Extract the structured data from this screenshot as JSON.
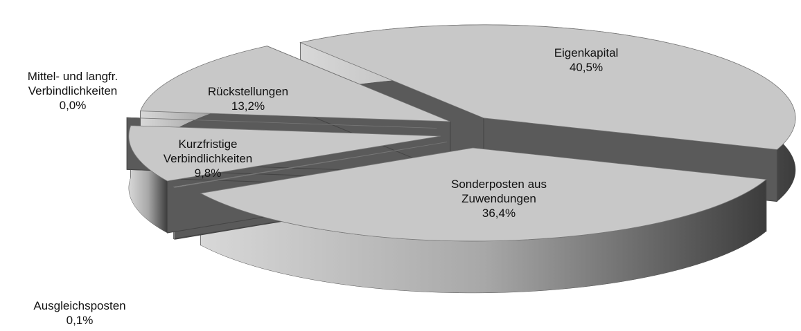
{
  "chart_data": {
    "type": "pie",
    "categories": [
      "Eigenkapital",
      "Sonderposten aus Zuwendungen",
      "Ausgleichsposten",
      "Kurzfristige Verbindlichkeiten",
      "Mittel- und langfr. Verbindlichkeiten",
      "Rückstellungen"
    ],
    "values": [
      40.5,
      36.4,
      0.1,
      9.8,
      0.0,
      13.2
    ],
    "value_labels": [
      "40,5%",
      "36,4%",
      "0,1%",
      "9,8%",
      "0,0%",
      "13,2%"
    ],
    "color": "#c8c8c8"
  }
}
